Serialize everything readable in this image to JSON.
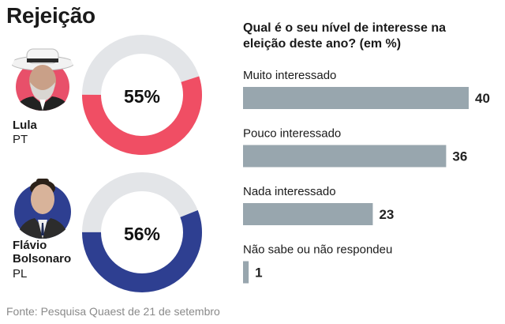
{
  "title": "Rejeição",
  "source": "Fonte: Pesquisa Quaest de 21 de setembro",
  "colors": {
    "lula": "#f04e64",
    "flavio": "#2e3f91",
    "ring_bg": "#e3e5e8",
    "bar": "#98a6ae"
  },
  "candidates": [
    {
      "name": "Lula",
      "party": "PT",
      "rejection_label": "55%",
      "rejection": 55
    },
    {
      "name": "Flávio Bolsonaro",
      "party": "PL",
      "rejection_label": "56%",
      "rejection": 56
    }
  ],
  "chart_data": [
    {
      "type": "pie",
      "categories": [
        "Lula",
        "Flávio Bolsonaro"
      ],
      "values": [
        55,
        56
      ],
      "title": "Rejeição"
    },
    {
      "type": "bar",
      "title": "Qual é o seu nível de interesse na eleição deste ano? (em %)",
      "categories": [
        "Muito interessado",
        "Pouco interessado",
        "Nada interessado",
        "Não sabe ou não respondeu"
      ],
      "values": [
        40,
        36,
        23,
        1
      ],
      "xlim": [
        0,
        40
      ]
    }
  ]
}
